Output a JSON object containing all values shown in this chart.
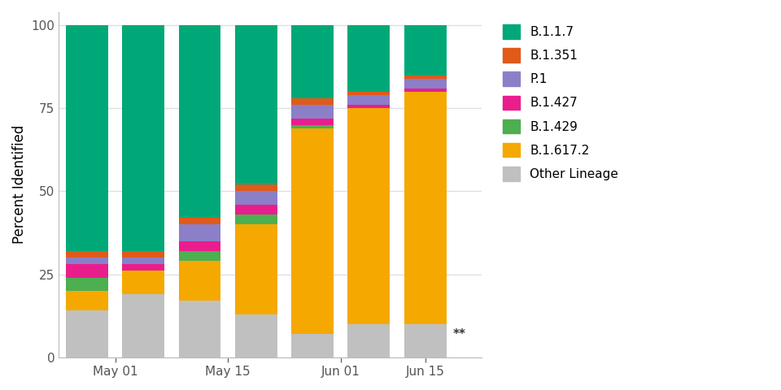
{
  "x_labels": [
    "May 01",
    "May 15",
    "Jun 01",
    "Jun 15"
  ],
  "x_tick_positions": [
    0.5,
    2.5,
    4.5,
    6.0
  ],
  "variants": [
    "Other Lineage",
    "B.1.617.2",
    "B.1.429",
    "B.1.427",
    "P.1",
    "B.1.351",
    "B.1.1.7"
  ],
  "colors": {
    "Other Lineage": "#c0c0c0",
    "B.1.617.2": "#f5a800",
    "B.1.429": "#4caf50",
    "B.1.427": "#e91e8c",
    "P.1": "#8b7fc8",
    "B.1.351": "#e05a1a",
    "B.1.1.7": "#00a878"
  },
  "data": {
    "Other Lineage": [
      14,
      19,
      17,
      13,
      7,
      10,
      10
    ],
    "B.1.617.2": [
      6,
      7,
      12,
      27,
      62,
      65,
      70
    ],
    "B.1.429": [
      4,
      0,
      3,
      3,
      1,
      0,
      0
    ],
    "B.1.427": [
      4,
      2,
      3,
      3,
      2,
      1,
      1
    ],
    "P.1": [
      2,
      2,
      5,
      4,
      4,
      3,
      3
    ],
    "B.1.351": [
      2,
      2,
      2,
      2,
      2,
      1,
      1
    ],
    "B.1.1.7": [
      68,
      68,
      58,
      48,
      22,
      20,
      15
    ]
  },
  "bar_positions": [
    0,
    1,
    2,
    3,
    4,
    5,
    6
  ],
  "bar_width": 0.75,
  "ylabel": "Percent Identified",
  "ylim": [
    0,
    104
  ],
  "yticks": [
    0,
    25,
    50,
    75,
    100
  ],
  "background_color": "#ffffff",
  "grid_color": "#e0e0e0",
  "annotation": "**",
  "legend_order": [
    "B.1.1.7",
    "B.1.351",
    "P.1",
    "B.1.427",
    "B.1.429",
    "B.1.617.2",
    "Other Lineage"
  ]
}
